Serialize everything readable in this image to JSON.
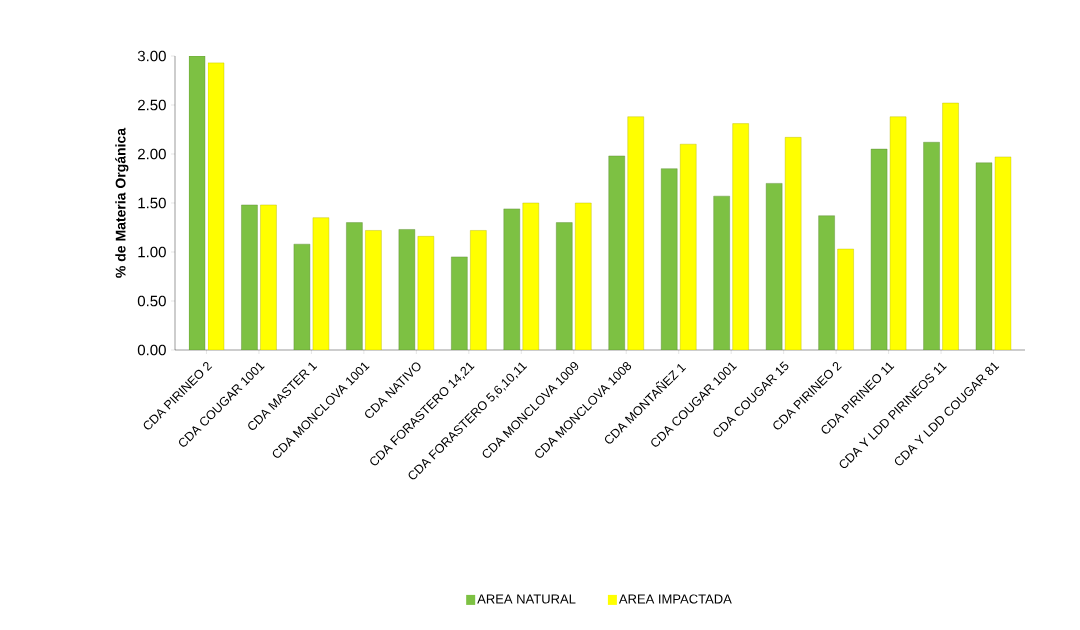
{
  "chart_data": {
    "type": "bar",
    "ylabel": "% de Materia Orgánica",
    "categories": [
      "CDA PIRINEO 2",
      "CDA COUGAR 1001",
      "CDA MASTER 1",
      "CDA MONCLOVA 1001",
      "CDA NATIVO",
      "CDA FORASTERO 14,21",
      "CDA FORASTERO 5,6,10,11",
      "CDA MONCLOVA 1009",
      "CDA MONCLOVA 1008",
      "CDA MONTAÑEZ 1",
      "CDA COUGAR 1001",
      "CDA COUGAR 15",
      "CDA PIRINEO 2",
      "CDA PIRINEO 11",
      "CDA Y LDD PIRINEOS 11",
      "CDA Y LDD COUGAR 81"
    ],
    "series": [
      {
        "name": "AREA NATURAL",
        "color": "#7dc143",
        "values": [
          3.0,
          1.48,
          1.08,
          1.3,
          1.23,
          0.95,
          1.44,
          1.3,
          1.98,
          1.85,
          1.57,
          1.7,
          1.37,
          2.05,
          2.12,
          1.91
        ]
      },
      {
        "name": "AREA IMPACTADA",
        "color": "#ffff00",
        "values": [
          2.93,
          1.48,
          1.35,
          1.22,
          1.16,
          1.22,
          1.5,
          1.5,
          2.38,
          2.1,
          2.31,
          2.17,
          1.03,
          2.38,
          2.52,
          1.97
        ]
      }
    ],
    "ylim": [
      0,
      3
    ],
    "yticks": [
      {
        "value": 0,
        "label": "0.00"
      },
      {
        "value": 0.5,
        "label": "0.50"
      },
      {
        "value": 1,
        "label": "1.00"
      },
      {
        "value": 1.5,
        "label": "1.50"
      },
      {
        "value": 2,
        "label": "2.00"
      },
      {
        "value": 2.5,
        "label": "2.50"
      },
      {
        "value": 3,
        "label": "3.00"
      }
    ],
    "grid": false,
    "legend": "bottom"
  }
}
